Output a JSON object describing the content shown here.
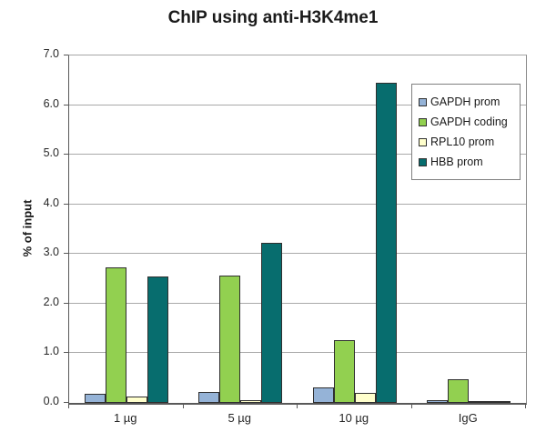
{
  "chart_data": {
    "type": "bar",
    "title": "ChIP using anti-H3K4me1",
    "ylabel": "% of input",
    "xlabel": "",
    "categories": [
      "1 µg",
      "5 µg",
      "10 µg",
      "IgG"
    ],
    "series": [
      {
        "name": "GAPDH prom",
        "color": "#95B3D7",
        "values": [
          0.18,
          0.22,
          0.32,
          0.05
        ]
      },
      {
        "name": "GAPDH coding",
        "color": "#92D050",
        "values": [
          2.73,
          2.57,
          1.27,
          0.47
        ]
      },
      {
        "name": "RPL10 prom",
        "color": "#FFFFCC",
        "values": [
          0.12,
          0.05,
          0.2,
          0.03
        ]
      },
      {
        "name": "HBB prom",
        "color": "#076D6E",
        "values": [
          2.55,
          3.23,
          6.45,
          0.02
        ]
      }
    ],
    "ylim": [
      0,
      7
    ],
    "ytick_step": 1,
    "ytick_decimals": 1,
    "grid": true,
    "legend_position": "top-right",
    "style": {
      "background": "#FFFFFF",
      "gridline_color": "#A9A9A9",
      "axis_color": "#595959",
      "bar_border_color": "#2F2F2F",
      "legend_border_color": "#808080",
      "text_color": "#1A1A1A"
    }
  }
}
